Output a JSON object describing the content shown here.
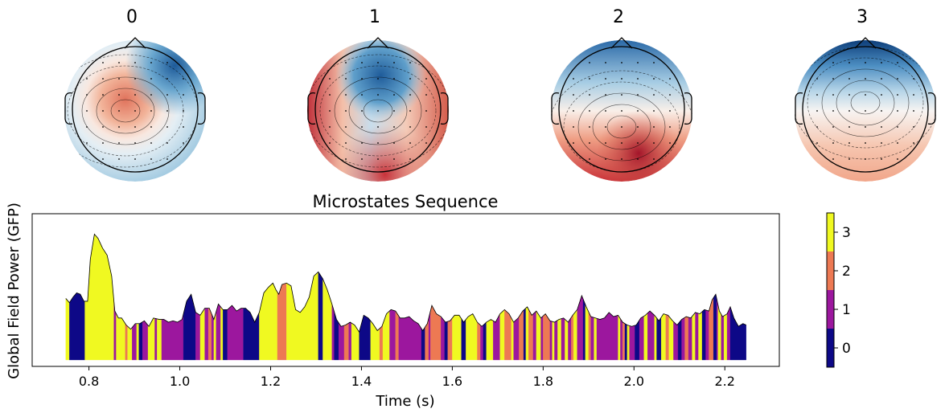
{
  "chart_data": [
    {
      "type": "heatmap",
      "subtype": "topomap",
      "panels": [
        {
          "title": "0",
          "pattern": "central-positive, frontal-right negative"
        },
        {
          "title": "1",
          "pattern": "frontal-center negative, left/right positive"
        },
        {
          "title": "2",
          "pattern": "frontal negative, posterior-right positive"
        },
        {
          "title": "3",
          "pattern": "frontal negative, posterior positive"
        }
      ],
      "colormap": "RdBu_r"
    },
    {
      "type": "area",
      "title": "Microstates Sequence",
      "xlabel": "Time (s)",
      "ylabel": "Global Field Power (GFP)",
      "xlim": [
        0.675,
        2.32
      ],
      "ylim": [
        0,
        1
      ],
      "xticks": [
        "0.8",
        "1.0",
        "1.2",
        "1.4",
        "1.6",
        "1.8",
        "2.0",
        "2.2"
      ],
      "gfp": [
        [
          0.749,
          0.44
        ],
        [
          0.757,
          0.41
        ],
        [
          0.765,
          0.45
        ],
        [
          0.773,
          0.48
        ],
        [
          0.781,
          0.47
        ],
        [
          0.789,
          0.42
        ],
        [
          0.797,
          0.42
        ],
        [
          0.803,
          0.72
        ],
        [
          0.812,
          0.9
        ],
        [
          0.82,
          0.87
        ],
        [
          0.83,
          0.8
        ],
        [
          0.84,
          0.75
        ],
        [
          0.85,
          0.6
        ],
        [
          0.857,
          0.35
        ],
        [
          0.865,
          0.3
        ],
        [
          0.872,
          0.3
        ],
        [
          0.882,
          0.25
        ],
        [
          0.892,
          0.22
        ],
        [
          0.902,
          0.26
        ],
        [
          0.912,
          0.26
        ],
        [
          0.922,
          0.28
        ],
        [
          0.932,
          0.24
        ],
        [
          0.942,
          0.3
        ],
        [
          0.955,
          0.29
        ],
        [
          0.965,
          0.29
        ],
        [
          0.975,
          0.27
        ],
        [
          0.985,
          0.28
        ],
        [
          0.995,
          0.27
        ],
        [
          1.005,
          0.29
        ],
        [
          1.015,
          0.42
        ],
        [
          1.025,
          0.47
        ],
        [
          1.035,
          0.34
        ],
        [
          1.045,
          0.32
        ],
        [
          1.055,
          0.37
        ],
        [
          1.065,
          0.37
        ],
        [
          1.075,
          0.29
        ],
        [
          1.085,
          0.4
        ],
        [
          1.095,
          0.36
        ],
        [
          1.105,
          0.36
        ],
        [
          1.115,
          0.39
        ],
        [
          1.125,
          0.35
        ],
        [
          1.135,
          0.37
        ],
        [
          1.145,
          0.37
        ],
        [
          1.155,
          0.34
        ],
        [
          1.165,
          0.27
        ],
        [
          1.175,
          0.34
        ],
        [
          1.185,
          0.48
        ],
        [
          1.195,
          0.52
        ],
        [
          1.205,
          0.55
        ],
        [
          1.212,
          0.5
        ],
        [
          1.218,
          0.47
        ],
        [
          1.225,
          0.54
        ],
        [
          1.235,
          0.55
        ],
        [
          1.245,
          0.53
        ],
        [
          1.255,
          0.36
        ],
        [
          1.265,
          0.34
        ],
        [
          1.275,
          0.38
        ],
        [
          1.285,
          0.45
        ],
        [
          1.295,
          0.6
        ],
        [
          1.305,
          0.63
        ],
        [
          1.315,
          0.58
        ],
        [
          1.325,
          0.5
        ],
        [
          1.335,
          0.4
        ],
        [
          1.345,
          0.29
        ],
        [
          1.355,
          0.24
        ],
        [
          1.365,
          0.25
        ],
        [
          1.375,
          0.27
        ],
        [
          1.385,
          0.25
        ],
        [
          1.395,
          0.2
        ],
        [
          1.405,
          0.32
        ],
        [
          1.415,
          0.3
        ],
        [
          1.425,
          0.26
        ],
        [
          1.435,
          0.21
        ],
        [
          1.445,
          0.24
        ],
        [
          1.455,
          0.33
        ],
        [
          1.465,
          0.36
        ],
        [
          1.475,
          0.35
        ],
        [
          1.485,
          0.3
        ],
        [
          1.495,
          0.3
        ],
        [
          1.505,
          0.31
        ],
        [
          1.515,
          0.28
        ],
        [
          1.525,
          0.26
        ],
        [
          1.535,
          0.21
        ],
        [
          1.545,
          0.26
        ],
        [
          1.555,
          0.39
        ],
        [
          1.565,
          0.33
        ],
        [
          1.575,
          0.31
        ],
        [
          1.585,
          0.27
        ],
        [
          1.595,
          0.28
        ],
        [
          1.605,
          0.32
        ],
        [
          1.615,
          0.32
        ],
        [
          1.625,
          0.27
        ],
        [
          1.635,
          0.31
        ],
        [
          1.645,
          0.33
        ],
        [
          1.655,
          0.27
        ],
        [
          1.665,
          0.24
        ],
        [
          1.675,
          0.27
        ],
        [
          1.685,
          0.29
        ],
        [
          1.695,
          0.27
        ],
        [
          1.705,
          0.33
        ],
        [
          1.715,
          0.36
        ],
        [
          1.725,
          0.33
        ],
        [
          1.735,
          0.27
        ],
        [
          1.745,
          0.3
        ],
        [
          1.755,
          0.35
        ],
        [
          1.765,
          0.38
        ],
        [
          1.775,
          0.32
        ],
        [
          1.785,
          0.35
        ],
        [
          1.795,
          0.3
        ],
        [
          1.805,
          0.33
        ],
        [
          1.815,
          0.28
        ],
        [
          1.825,
          0.27
        ],
        [
          1.835,
          0.29
        ],
        [
          1.845,
          0.3
        ],
        [
          1.855,
          0.27
        ],
        [
          1.865,
          0.32
        ],
        [
          1.875,
          0.36
        ],
        [
          1.885,
          0.46
        ],
        [
          1.895,
          0.38
        ],
        [
          1.905,
          0.31
        ],
        [
          1.915,
          0.3
        ],
        [
          1.925,
          0.29
        ],
        [
          1.935,
          0.3
        ],
        [
          1.945,
          0.34
        ],
        [
          1.955,
          0.31
        ],
        [
          1.965,
          0.32
        ],
        [
          1.975,
          0.27
        ],
        [
          1.985,
          0.25
        ],
        [
          1.995,
          0.24
        ],
        [
          2.005,
          0.25
        ],
        [
          2.015,
          0.3
        ],
        [
          2.025,
          0.32
        ],
        [
          2.035,
          0.35
        ],
        [
          2.045,
          0.32
        ],
        [
          2.055,
          0.28
        ],
        [
          2.065,
          0.33
        ],
        [
          2.075,
          0.32
        ],
        [
          2.085,
          0.28
        ],
        [
          2.095,
          0.25
        ],
        [
          2.105,
          0.29
        ],
        [
          2.115,
          0.31
        ],
        [
          2.125,
          0.3
        ],
        [
          2.135,
          0.34
        ],
        [
          2.145,
          0.33
        ],
        [
          2.155,
          0.36
        ],
        [
          2.165,
          0.35
        ],
        [
          2.172,
          0.43
        ],
        [
          2.18,
          0.47
        ],
        [
          2.188,
          0.35
        ],
        [
          2.195,
          0.31
        ],
        [
          2.205,
          0.33
        ],
        [
          2.212,
          0.38
        ],
        [
          2.22,
          0.3
        ],
        [
          2.23,
          0.24
        ],
        [
          2.24,
          0.26
        ],
        [
          2.247,
          0.25
        ]
      ],
      "states": [
        [
          0.749,
          0.757,
          3
        ],
        [
          0.757,
          0.791,
          0
        ],
        [
          0.791,
          0.855,
          3
        ],
        [
          0.855,
          0.86,
          1
        ],
        [
          0.86,
          0.88,
          3
        ],
        [
          0.88,
          0.885,
          2
        ],
        [
          0.885,
          0.895,
          3
        ],
        [
          0.895,
          0.905,
          1
        ],
        [
          0.905,
          0.91,
          3
        ],
        [
          0.91,
          0.918,
          0
        ],
        [
          0.918,
          0.93,
          1
        ],
        [
          0.93,
          0.945,
          3
        ],
        [
          0.945,
          0.95,
          1
        ],
        [
          0.95,
          0.96,
          3
        ],
        [
          0.96,
          1.008,
          1
        ],
        [
          1.008,
          1.035,
          0
        ],
        [
          1.035,
          1.045,
          1
        ],
        [
          1.045,
          1.055,
          3
        ],
        [
          1.055,
          1.063,
          1
        ],
        [
          1.063,
          1.07,
          2
        ],
        [
          1.07,
          1.075,
          1
        ],
        [
          1.075,
          1.08,
          3
        ],
        [
          1.08,
          1.09,
          1
        ],
        [
          1.09,
          1.095,
          3
        ],
        [
          1.095,
          1.105,
          0
        ],
        [
          1.105,
          1.14,
          1
        ],
        [
          1.14,
          1.175,
          0
        ],
        [
          1.175,
          1.215,
          3
        ],
        [
          1.215,
          1.235,
          2
        ],
        [
          1.235,
          1.305,
          3
        ],
        [
          1.305,
          1.315,
          0
        ],
        [
          1.315,
          1.335,
          3
        ],
        [
          1.335,
          1.34,
          1
        ],
        [
          1.34,
          1.35,
          0
        ],
        [
          1.35,
          1.362,
          1
        ],
        [
          1.362,
          1.372,
          2
        ],
        [
          1.372,
          1.378,
          1
        ],
        [
          1.378,
          1.395,
          3
        ],
        [
          1.395,
          1.42,
          0
        ],
        [
          1.42,
          1.44,
          3
        ],
        [
          1.44,
          1.447,
          2
        ],
        [
          1.447,
          1.462,
          3
        ],
        [
          1.462,
          1.475,
          1
        ],
        [
          1.475,
          1.482,
          2
        ],
        [
          1.482,
          1.532,
          1
        ],
        [
          1.532,
          1.54,
          0
        ],
        [
          1.54,
          1.548,
          2
        ],
        [
          1.548,
          1.552,
          1
        ],
        [
          1.552,
          1.575,
          2
        ],
        [
          1.575,
          1.583,
          1
        ],
        [
          1.583,
          1.59,
          0
        ],
        [
          1.59,
          1.6,
          2
        ],
        [
          1.6,
          1.62,
          3
        ],
        [
          1.62,
          1.63,
          0
        ],
        [
          1.63,
          1.655,
          3
        ],
        [
          1.655,
          1.662,
          2
        ],
        [
          1.662,
          1.668,
          1
        ],
        [
          1.668,
          1.675,
          0
        ],
        [
          1.675,
          1.69,
          3
        ],
        [
          1.69,
          1.705,
          1
        ],
        [
          1.705,
          1.715,
          3
        ],
        [
          1.715,
          1.73,
          2
        ],
        [
          1.73,
          1.735,
          3
        ],
        [
          1.735,
          1.747,
          1
        ],
        [
          1.747,
          1.757,
          2
        ],
        [
          1.757,
          1.762,
          0
        ],
        [
          1.762,
          1.768,
          3
        ],
        [
          1.768,
          1.778,
          2
        ],
        [
          1.778,
          1.785,
          1
        ],
        [
          1.785,
          1.795,
          3
        ],
        [
          1.795,
          1.8,
          1
        ],
        [
          1.8,
          1.815,
          2
        ],
        [
          1.815,
          1.82,
          1
        ],
        [
          1.82,
          1.825,
          3
        ],
        [
          1.825,
          1.832,
          1
        ],
        [
          1.832,
          1.84,
          3
        ],
        [
          1.84,
          1.848,
          1
        ],
        [
          1.848,
          1.855,
          3
        ],
        [
          1.855,
          1.862,
          1
        ],
        [
          1.862,
          1.867,
          2
        ],
        [
          1.867,
          1.875,
          3
        ],
        [
          1.875,
          1.888,
          1
        ],
        [
          1.888,
          1.893,
          0
        ],
        [
          1.893,
          1.9,
          3
        ],
        [
          1.9,
          1.905,
          2
        ],
        [
          1.905,
          1.912,
          1
        ],
        [
          1.912,
          1.918,
          3
        ],
        [
          1.918,
          1.965,
          1
        ],
        [
          1.965,
          1.97,
          3
        ],
        [
          1.97,
          1.975,
          1
        ],
        [
          1.975,
          1.98,
          2
        ],
        [
          1.98,
          1.985,
          0
        ],
        [
          1.985,
          1.99,
          3
        ],
        [
          1.99,
          2.002,
          1
        ],
        [
          2.002,
          2.012,
          0
        ],
        [
          2.012,
          2.022,
          1
        ],
        [
          2.022,
          2.03,
          3
        ],
        [
          2.03,
          2.045,
          1
        ],
        [
          2.045,
          2.05,
          3
        ],
        [
          2.05,
          2.06,
          0
        ],
        [
          2.06,
          2.07,
          3
        ],
        [
          2.07,
          2.077,
          2
        ],
        [
          2.077,
          2.087,
          3
        ],
        [
          2.087,
          2.097,
          1
        ],
        [
          2.097,
          2.105,
          0
        ],
        [
          2.105,
          2.112,
          1
        ],
        [
          2.112,
          2.12,
          2
        ],
        [
          2.12,
          2.128,
          1
        ],
        [
          2.128,
          2.135,
          3
        ],
        [
          2.135,
          2.142,
          1
        ],
        [
          2.142,
          2.15,
          3
        ],
        [
          2.15,
          2.158,
          0
        ],
        [
          2.158,
          2.165,
          1
        ],
        [
          2.165,
          2.175,
          2
        ],
        [
          2.175,
          2.182,
          0
        ],
        [
          2.182,
          2.185,
          1
        ],
        [
          2.185,
          2.192,
          3
        ],
        [
          2.192,
          2.198,
          1
        ],
        [
          2.198,
          2.205,
          3
        ],
        [
          2.205,
          2.212,
          1
        ],
        [
          2.212,
          2.247,
          0
        ]
      ],
      "colorbar": {
        "ticks": [
          "0",
          "1",
          "2",
          "3"
        ],
        "colors": [
          "#0d0887",
          "#9c179e",
          "#ed7953",
          "#f0f921"
        ]
      }
    }
  ]
}
